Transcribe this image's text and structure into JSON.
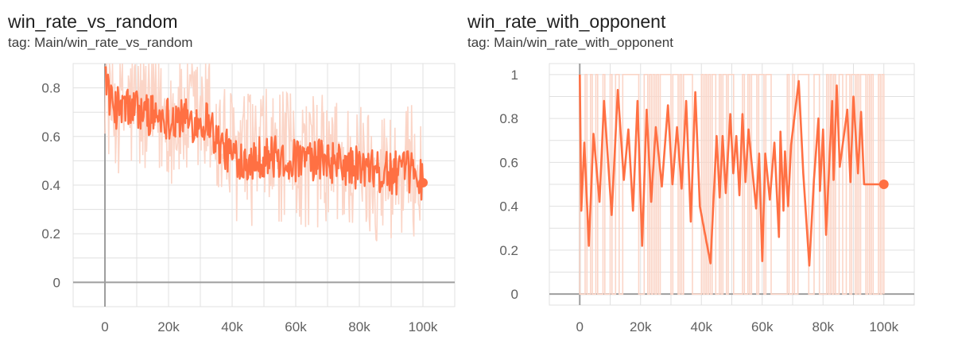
{
  "charts": [
    {
      "title": "win_rate_vs_random",
      "tag": "tag: Main/win_rate_vs_random"
    },
    {
      "title": "win_rate_with_opponent",
      "tag": "tag: Main/win_rate_with_opponent"
    }
  ],
  "colors": {
    "series": "#ff7043",
    "raw": "#fbd5c7",
    "grid": "#e0e0e0",
    "axis": "#9e9e9e",
    "tick": "#616161"
  },
  "chart_data": [
    {
      "type": "line",
      "title": "win_rate_vs_random",
      "xlim": [
        -10000,
        110000
      ],
      "ylim": [
        -0.1,
        0.9
      ],
      "x_ticks": [
        0,
        20000,
        40000,
        60000,
        80000,
        100000
      ],
      "x_tick_labels": [
        "0",
        "20k",
        "40k",
        "60k",
        "80k",
        "100k"
      ],
      "y_ticks": [
        0,
        0.2,
        0.4,
        0.6,
        0.8
      ],
      "y_tick_labels": [
        "0",
        "0.2",
        "0.4",
        "0.6",
        "0.8"
      ],
      "grid": true,
      "series": [
        {
          "smoothed_trend": {
            "x": [
              0,
              1000,
              2000,
              5000,
              10000,
              15000,
              20000,
              25000,
              30000,
              33000,
              35000,
              40000,
              45000,
              50000,
              55000,
              60000,
              65000,
              70000,
              75000,
              80000,
              85000,
              90000,
              95000,
              98000,
              100000
            ],
            "y": [
              0.88,
              0.8,
              0.72,
              0.72,
              0.71,
              0.69,
              0.68,
              0.67,
              0.66,
              0.67,
              0.58,
              0.52,
              0.51,
              0.52,
              0.51,
              0.5,
              0.5,
              0.5,
              0.48,
              0.47,
              0.45,
              0.45,
              0.45,
              0.47,
              0.41
            ]
          },
          "noise_amplitude": 0.09,
          "raw_range": [
            0.0,
            0.9
          ]
        }
      ],
      "last_point": {
        "x": 100000,
        "y": 0.41
      }
    },
    {
      "type": "line",
      "title": "win_rate_with_opponent",
      "xlim": [
        -10000,
        110000
      ],
      "ylim": [
        -0.05,
        1.05
      ],
      "x_ticks": [
        0,
        20000,
        40000,
        60000,
        80000,
        100000
      ],
      "x_tick_labels": [
        "0",
        "20k",
        "40k",
        "60k",
        "80k",
        "100k"
      ],
      "y_ticks": [
        0,
        0.2,
        0.4,
        0.6,
        0.8,
        1
      ],
      "y_tick_labels": [
        "0",
        "0.2",
        "0.4",
        "0.6",
        "0.8",
        "1"
      ],
      "grid": true,
      "series": [
        {
          "x": [
            0,
            500,
            1500,
            3000,
            4500,
            6500,
            8000,
            10500,
            12500,
            14500,
            16000,
            17500,
            19000,
            20500,
            22000,
            23500,
            25000,
            27000,
            29000,
            30500,
            32000,
            33500,
            35000,
            36500,
            38000,
            39500,
            43000,
            45000,
            46000,
            47000,
            48000,
            49500,
            50500,
            51500,
            52500,
            53500,
            54500,
            55500,
            56500,
            58000,
            59000,
            60000,
            61000,
            62500,
            64000,
            65500,
            66000,
            67000,
            67500,
            68500,
            69500,
            72000,
            73500,
            75500,
            77000,
            78500,
            79000,
            80000,
            81000,
            83000,
            83500,
            84500,
            85500,
            88000,
            89000,
            90000,
            91500,
            92500,
            93500,
            95500,
            96500,
            98000,
            99000,
            100000
          ],
          "y": [
            1.0,
            0.38,
            0.69,
            0.22,
            0.73,
            0.42,
            0.88,
            0.36,
            0.93,
            0.52,
            0.75,
            0.38,
            0.88,
            0.22,
            0.84,
            0.42,
            0.76,
            0.49,
            0.86,
            0.5,
            0.76,
            0.48,
            0.88,
            0.33,
            0.92,
            0.4,
            0.14,
            0.72,
            0.44,
            0.72,
            0.46,
            0.82,
            0.55,
            0.72,
            0.45,
            0.82,
            0.51,
            0.75,
            0.6,
            0.39,
            0.64,
            0.15,
            0.64,
            0.43,
            0.69,
            0.26,
            0.74,
            0.38,
            0.65,
            0.4,
            0.68,
            0.97,
            0.55,
            0.13,
            0.52,
            0.8,
            0.47,
            0.75,
            0.27,
            0.88,
            0.52,
            0.95,
            0.58,
            0.84,
            0.51,
            0.9,
            0.55,
            0.83,
            0.5,
            0.5,
            0.5,
            0.5,
            0.5,
            0.5
          ],
          "raw_range": [
            0,
            1
          ]
        }
      ],
      "last_point": {
        "x": 100000,
        "y": 0.5
      }
    }
  ]
}
